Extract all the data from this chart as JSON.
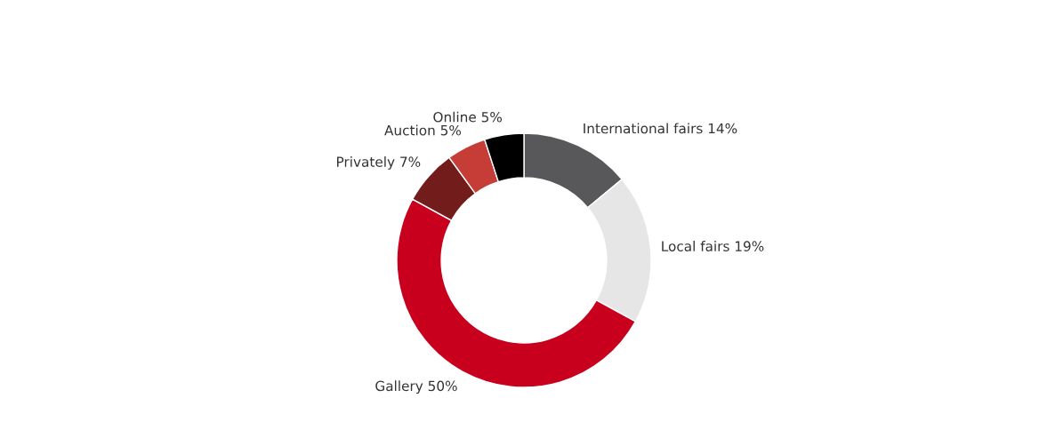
{
  "chart_data": {
    "type": "donut",
    "categories": [
      "International fairs",
      "Local fairs",
      "Gallery",
      "Privately",
      "Auction",
      "Online"
    ],
    "values": [
      14,
      19,
      50,
      7,
      5,
      5
    ],
    "value_labels": [
      "14%",
      "19%",
      "50%",
      "7%",
      "5%",
      "5%"
    ],
    "colors": [
      "#58585a",
      "#e6e6e6",
      "#c8001e",
      "#731c1c",
      "#c63c36",
      "#000000"
    ]
  }
}
